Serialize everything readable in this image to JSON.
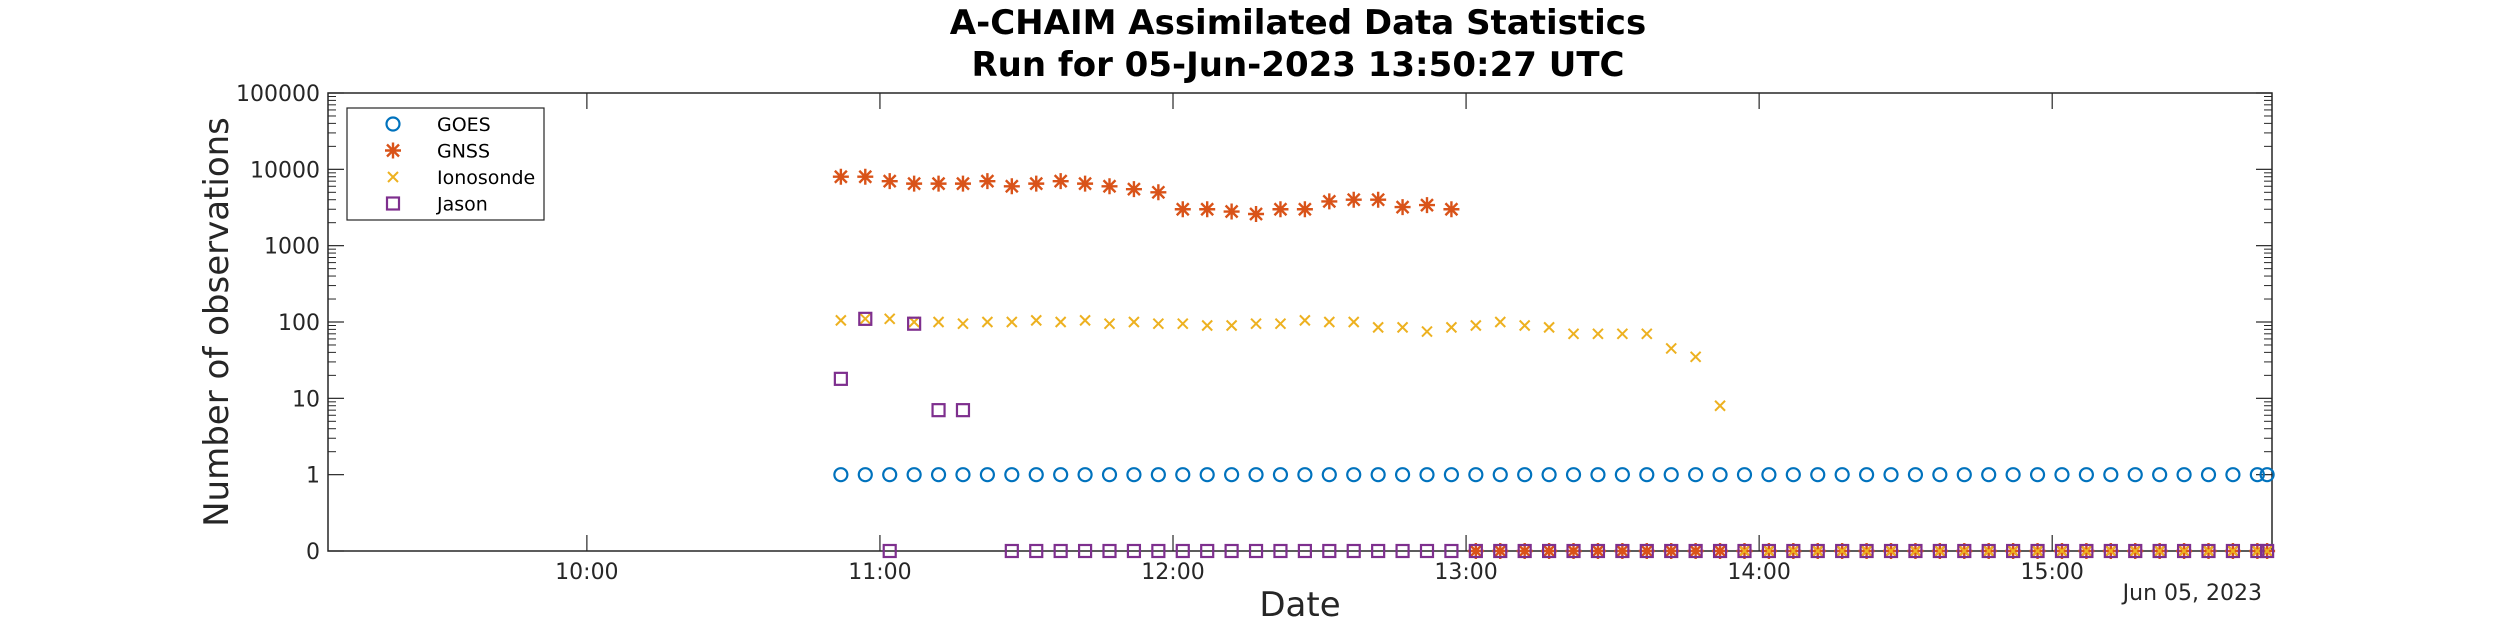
{
  "chart_data": {
    "type": "scatter",
    "title": [
      "A-CHAIM Assimilated Data Statistics",
      "Run for 05-Jun-2023 13:50:27 UTC"
    ],
    "xlabel": "Date",
    "ylabel": "Number of observations",
    "x_secondary_label": "Jun 05, 2023",
    "xlim": [
      "09:07",
      "15:45"
    ],
    "x_ticks": [
      "10:00",
      "11:00",
      "12:00",
      "13:00",
      "14:00",
      "15:00"
    ],
    "y_scale": "log",
    "y_ticks": [
      "0",
      "1",
      "10",
      "100",
      "1000",
      "10000",
      "100000"
    ],
    "ylim": [
      0,
      100000
    ],
    "grid": false,
    "legend_position": "top-left",
    "series": [
      {
        "name": "GOES",
        "marker": "circle",
        "color": "#0072bd",
        "x": [
          "10:52",
          "10:57",
          "11:02",
          "11:07",
          "11:12",
          "11:17",
          "11:22",
          "11:27",
          "11:32",
          "11:37",
          "11:42",
          "11:47",
          "11:52",
          "11:57",
          "12:02",
          "12:07",
          "12:12",
          "12:17",
          "12:22",
          "12:27",
          "12:32",
          "12:37",
          "12:42",
          "12:47",
          "12:52",
          "12:57",
          "13:02",
          "13:07",
          "13:12",
          "13:17",
          "13:22",
          "13:27",
          "13:32",
          "13:37",
          "13:42",
          "13:47",
          "13:52",
          "13:57",
          "14:02",
          "14:07",
          "14:12",
          "14:17",
          "14:22",
          "14:27",
          "14:32",
          "14:37",
          "14:42",
          "14:47",
          "14:52",
          "14:57",
          "15:02",
          "15:07",
          "15:12",
          "15:17",
          "15:22",
          "15:27",
          "15:32",
          "15:37",
          "15:42",
          "15:44"
        ],
        "y": [
          1,
          1,
          1,
          1,
          1,
          1,
          1,
          1,
          1,
          1,
          1,
          1,
          1,
          1,
          1,
          1,
          1,
          1,
          1,
          1,
          1,
          1,
          1,
          1,
          1,
          1,
          1,
          1,
          1,
          1,
          1,
          1,
          1,
          1,
          1,
          1,
          1,
          1,
          1,
          1,
          1,
          1,
          1,
          1,
          1,
          1,
          1,
          1,
          1,
          1,
          1,
          1,
          1,
          1,
          1,
          1,
          1,
          1,
          1,
          1
        ]
      },
      {
        "name": "GNSS",
        "marker": "asterisk",
        "color": "#d95319",
        "x": [
          "10:52",
          "10:57",
          "11:02",
          "11:07",
          "11:12",
          "11:17",
          "11:22",
          "11:27",
          "11:32",
          "11:37",
          "11:42",
          "11:47",
          "11:52",
          "11:57",
          "12:02",
          "12:07",
          "12:12",
          "12:17",
          "12:22",
          "12:27",
          "12:32",
          "12:37",
          "12:42",
          "12:47",
          "12:52",
          "12:57",
          "13:02",
          "13:07",
          "13:12",
          "13:17",
          "13:22",
          "13:27",
          "13:32",
          "13:37",
          "13:42",
          "13:47",
          "13:52",
          "13:57",
          "14:02",
          "14:07",
          "14:12",
          "14:17",
          "14:22",
          "14:27",
          "14:32",
          "14:37",
          "14:42",
          "14:47",
          "14:52",
          "14:57",
          "15:02",
          "15:07",
          "15:12",
          "15:17",
          "15:22",
          "15:27",
          "15:32",
          "15:37",
          "15:42",
          "15:44"
        ],
        "y": [
          8000,
          8000,
          7000,
          6500,
          6500,
          6500,
          7000,
          6000,
          6500,
          7000,
          6500,
          6000,
          5500,
          5000,
          3000,
          3000,
          2800,
          2600,
          3000,
          3000,
          3800,
          4000,
          4000,
          3200,
          3400,
          3000,
          0,
          0,
          0,
          0,
          0,
          0,
          0,
          0,
          0,
          0,
          0,
          0,
          0,
          0,
          0,
          0,
          0,
          0,
          0,
          0,
          0,
          0,
          0,
          0,
          0,
          0,
          0,
          0,
          0,
          0,
          0,
          0,
          0,
          0
        ]
      },
      {
        "name": "Ionosonde",
        "marker": "x",
        "color": "#edb120",
        "x": [
          "10:52",
          "10:57",
          "11:02",
          "11:07",
          "11:12",
          "11:17",
          "11:22",
          "11:27",
          "11:32",
          "11:37",
          "11:42",
          "11:47",
          "11:52",
          "11:57",
          "12:02",
          "12:07",
          "12:12",
          "12:17",
          "12:22",
          "12:27",
          "12:32",
          "12:37",
          "12:42",
          "12:47",
          "12:52",
          "12:57",
          "13:02",
          "13:07",
          "13:12",
          "13:17",
          "13:22",
          "13:27",
          "13:32",
          "13:37",
          "13:42",
          "13:47",
          "13:52",
          "13:57",
          "14:02",
          "14:07",
          "14:12",
          "14:17",
          "14:22",
          "14:27",
          "14:32",
          "14:37",
          "14:42",
          "14:47",
          "14:52",
          "14:57",
          "15:02",
          "15:07",
          "15:12",
          "15:17",
          "15:22",
          "15:27",
          "15:32",
          "15:37",
          "15:42",
          "15:44"
        ],
        "y": [
          105,
          110,
          110,
          100,
          100,
          95,
          100,
          100,
          105,
          100,
          105,
          95,
          100,
          95,
          95,
          90,
          90,
          95,
          95,
          105,
          100,
          100,
          85,
          85,
          75,
          85,
          90,
          100,
          90,
          85,
          70,
          70,
          70,
          70,
          45,
          35,
          8,
          0,
          0,
          0,
          0,
          0,
          0,
          0,
          0,
          0,
          0,
          0,
          0,
          0,
          0,
          0,
          0,
          0,
          0,
          0,
          0,
          0,
          0,
          0
        ]
      },
      {
        "name": "Jason",
        "marker": "square",
        "color": "#7e2f8e",
        "x": [
          "10:52",
          "10:57",
          "11:02",
          "11:07",
          "11:12",
          "11:17",
          "11:27",
          "11:32",
          "11:37",
          "11:42",
          "11:47",
          "11:52",
          "11:57",
          "12:02",
          "12:07",
          "12:12",
          "12:17",
          "12:22",
          "12:27",
          "12:32",
          "12:37",
          "12:42",
          "12:47",
          "12:52",
          "12:57",
          "13:02",
          "13:07",
          "13:12",
          "13:17",
          "13:22",
          "13:27",
          "13:32",
          "13:37",
          "13:42",
          "13:47",
          "13:52",
          "13:57",
          "14:02",
          "14:07",
          "14:12",
          "14:17",
          "14:22",
          "14:27",
          "14:32",
          "14:37",
          "14:42",
          "14:47",
          "14:52",
          "14:57",
          "15:02",
          "15:07",
          "15:12",
          "15:17",
          "15:22",
          "15:27",
          "15:32",
          "15:37",
          "15:42",
          "15:44"
        ],
        "y": [
          18,
          110,
          0,
          95,
          7,
          7,
          0,
          0,
          0,
          0,
          0,
          0,
          0,
          0,
          0,
          0,
          0,
          0,
          0,
          0,
          0,
          0,
          0,
          0,
          0,
          0,
          0,
          0,
          0,
          0,
          0,
          0,
          0,
          0,
          0,
          0,
          0,
          0,
          0,
          0,
          0,
          0,
          0,
          0,
          0,
          0,
          0,
          0,
          0,
          0,
          0,
          0,
          0,
          0,
          0,
          0,
          0,
          0,
          0
        ]
      }
    ]
  }
}
